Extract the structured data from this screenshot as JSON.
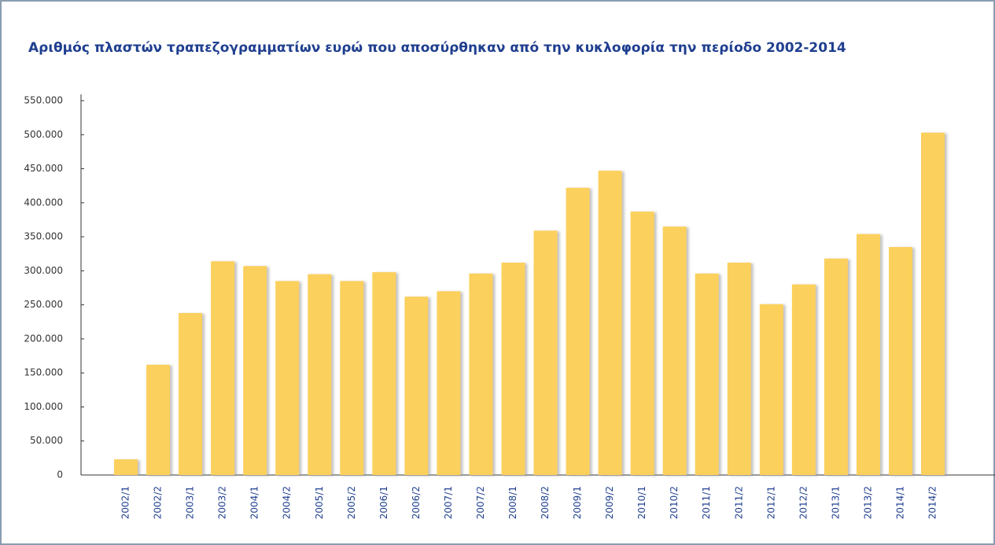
{
  "chart_data": {
    "type": "bar",
    "title": "Αριθμός πλαστών τραπεζογραμματίων ευρώ που αποσύρθηκαν από την κυκλοφορία την περίοδο 2002-2014",
    "categories": [
      "2002/1",
      "2002/2",
      "2003/1",
      "2003/2",
      "2004/1",
      "2004/2",
      "2005/1",
      "2005/2",
      "2006/1",
      "2006/2",
      "2007/1",
      "2007/2",
      "2008/1",
      "2008/2",
      "2009/1",
      "2009/2",
      "2010/1",
      "2010/2",
      "2011/1",
      "2011/2",
      "2012/1",
      "2012/2",
      "2013/1",
      "2013/2",
      "2014/1",
      "2014/2"
    ],
    "values": [
      23000,
      162000,
      238000,
      314000,
      307000,
      285000,
      295000,
      285000,
      298000,
      262000,
      270000,
      296000,
      312000,
      359000,
      422000,
      447000,
      387000,
      365000,
      296000,
      312000,
      251000,
      280000,
      318000,
      354000,
      335000,
      503000
    ],
    "color": "#fcd05c",
    "ylim": [
      0,
      550000
    ],
    "yticks": [
      0,
      {
        "value": 50000,
        "label": "50.000"
      },
      {
        "value": 100000,
        "label": "100.000"
      },
      {
        "value": 150000,
        "label": "150.000"
      },
      {
        "value": 200000,
        "label": "200.000"
      },
      {
        "value": 250000,
        "label": "250.000"
      },
      {
        "value": 300000,
        "label": "300.000"
      },
      {
        "value": 350000,
        "label": "350.000"
      },
      {
        "value": 400000,
        "label": "400.000"
      },
      {
        "value": 450000,
        "label": "450.000"
      },
      {
        "value": 500000,
        "label": "500.000"
      },
      {
        "value": 550000,
        "label": "550.000"
      }
    ]
  }
}
